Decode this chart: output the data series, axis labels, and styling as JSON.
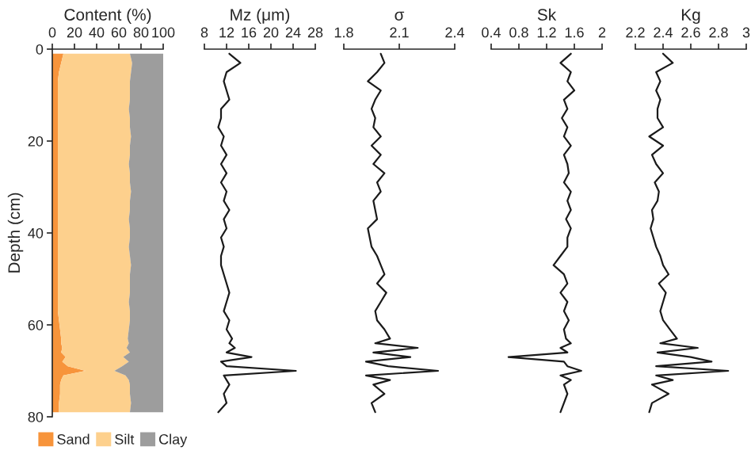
{
  "chart_data": [
    {
      "type": "area",
      "orientation": "horizontal",
      "stacked": true,
      "xlabel": "Content (%)",
      "ylabel": "Depth (cm)",
      "x": [
        1,
        3,
        5,
        7,
        9,
        11,
        13,
        15,
        17,
        19,
        21,
        23,
        25,
        27,
        29,
        31,
        33,
        35,
        37,
        39,
        41,
        43,
        45,
        47,
        49,
        51,
        53,
        55,
        57,
        59,
        61,
        63,
        64,
        65,
        66,
        67,
        68,
        69,
        70,
        71,
        72,
        73,
        75,
        77,
        79
      ],
      "series": [
        {
          "name": "Sand",
          "color": "#f7943b",
          "values": [
            10,
            8,
            6,
            5,
            5,
            5,
            5,
            5,
            5,
            5,
            5,
            5,
            5,
            5,
            5,
            5,
            5,
            5,
            5,
            5,
            5,
            5,
            5,
            5,
            5,
            5,
            5,
            5,
            5,
            6,
            7,
            8,
            8,
            9,
            8,
            12,
            9,
            14,
            30,
            10,
            8,
            7,
            7,
            6,
            6
          ]
        },
        {
          "name": "Silt",
          "color": "#fdd08d",
          "values": [
            60,
            64,
            65,
            65,
            65,
            65,
            64,
            65,
            65,
            66,
            65,
            65,
            64,
            65,
            65,
            66,
            65,
            65,
            64,
            65,
            65,
            64,
            65,
            66,
            65,
            65,
            65,
            64,
            65,
            64,
            62,
            60,
            61,
            58,
            62,
            52,
            60,
            49,
            26,
            56,
            61,
            63,
            63,
            65,
            64
          ]
        },
        {
          "name": "Clay",
          "color": "#9d9d9d",
          "values": [
            30,
            28,
            29,
            30,
            30,
            30,
            31,
            30,
            30,
            29,
            30,
            30,
            31,
            30,
            30,
            29,
            30,
            30,
            31,
            30,
            30,
            31,
            30,
            29,
            30,
            30,
            30,
            31,
            30,
            30,
            31,
            32,
            31,
            33,
            30,
            36,
            31,
            37,
            44,
            34,
            31,
            30,
            30,
            29,
            30
          ]
        }
      ],
      "xlim": [
        0,
        100
      ],
      "xticks": [
        0,
        20,
        40,
        60,
        80,
        100
      ],
      "ylim": [
        80,
        0
      ],
      "yticks": [
        0,
        20,
        40,
        60,
        80
      ],
      "legend": "bottom"
    },
    {
      "type": "line",
      "orientation": "horizontal",
      "xlabel": "Mz (μm)",
      "x": [
        1,
        3,
        5,
        7,
        9,
        11,
        13,
        15,
        17,
        19,
        21,
        23,
        25,
        27,
        29,
        31,
        33,
        35,
        37,
        39,
        41,
        43,
        45,
        47,
        49,
        51,
        53,
        55,
        57,
        59,
        61,
        63,
        64,
        65,
        66,
        67,
        68,
        69,
        70,
        71,
        72,
        73,
        75,
        77,
        79
      ],
      "series": [
        {
          "color": "#1a1a1a",
          "values": [
            12.5,
            14.5,
            12,
            11.5,
            12,
            12.5,
            11,
            11,
            10.5,
            11.5,
            11,
            12,
            11,
            12,
            11,
            12,
            11.5,
            12.5,
            11.5,
            12,
            11,
            11.5,
            11,
            11,
            11.5,
            12,
            12.5,
            12,
            11.5,
            12.5,
            12,
            13,
            12.5,
            13.5,
            12,
            16.5,
            11,
            12,
            24.5,
            11.5,
            12,
            12.5,
            11.5,
            12,
            10.5
          ]
        }
      ],
      "xlim": [
        8,
        28
      ],
      "xticks": [
        8,
        12,
        16,
        20,
        24,
        28
      ],
      "ylim": [
        80,
        0
      ],
      "tick_labels": "x"
    },
    {
      "type": "line",
      "orientation": "horizontal",
      "xlabel": "σ",
      "x": [
        1,
        3,
        5,
        7,
        9,
        11,
        13,
        15,
        17,
        19,
        21,
        23,
        25,
        27,
        29,
        31,
        33,
        35,
        37,
        39,
        41,
        43,
        45,
        47,
        49,
        51,
        53,
        55,
        57,
        59,
        61,
        63,
        64,
        65,
        66,
        67,
        68,
        69,
        70,
        71,
        72,
        73,
        75,
        77,
        79
      ],
      "series": [
        {
          "color": "#1a1a1a",
          "values": [
            2.0,
            2.02,
            1.98,
            1.93,
            2.0,
            1.97,
            1.95,
            1.97,
            1.96,
            2.0,
            1.95,
            2.0,
            1.96,
            2.02,
            1.98,
            2.0,
            1.96,
            1.97,
            1.98,
            1.93,
            1.94,
            1.95,
            1.98,
            2.0,
            2.02,
            1.98,
            2.03,
            2.0,
            1.97,
            1.98,
            2.02,
            2.05,
            1.97,
            2.2,
            1.96,
            2.16,
            1.92,
            2.04,
            2.31,
            1.92,
            2.05,
            1.96,
            2.02,
            1.95,
            1.97
          ]
        }
      ],
      "xlim": [
        1.8,
        2.4
      ],
      "xticks": [
        1.8,
        2.1,
        2.4
      ],
      "ylim": [
        80,
        0
      ],
      "tick_labels": "x"
    },
    {
      "type": "line",
      "orientation": "horizontal",
      "xlabel": "Sk",
      "x": [
        1,
        3,
        5,
        7,
        9,
        11,
        13,
        15,
        17,
        19,
        21,
        23,
        25,
        27,
        29,
        31,
        33,
        35,
        37,
        39,
        41,
        43,
        45,
        47,
        49,
        51,
        53,
        55,
        57,
        59,
        61,
        63,
        64,
        65,
        66,
        67,
        68,
        69,
        70,
        71,
        72,
        73,
        75,
        77,
        79
      ],
      "series": [
        {
          "color": "#1a1a1a",
          "values": [
            1.55,
            1.4,
            1.55,
            1.5,
            1.6,
            1.45,
            1.5,
            1.42,
            1.5,
            1.45,
            1.55,
            1.45,
            1.5,
            1.52,
            1.45,
            1.55,
            1.5,
            1.55,
            1.48,
            1.55,
            1.5,
            1.5,
            1.4,
            1.3,
            1.45,
            1.5,
            1.4,
            1.5,
            1.45,
            1.52,
            1.45,
            1.48,
            1.55,
            1.4,
            1.5,
            0.65,
            1.45,
            1.5,
            1.7,
            1.4,
            1.55,
            1.45,
            1.5,
            1.45,
            1.4
          ]
        }
      ],
      "xlim": [
        0.4,
        2
      ],
      "xticks": [
        0.4,
        0.8,
        1.2,
        1.6,
        2
      ],
      "ylim": [
        80,
        0
      ],
      "tick_labels": "x"
    },
    {
      "type": "line",
      "orientation": "horizontal",
      "xlabel": "Kg",
      "x": [
        1,
        3,
        5,
        7,
        9,
        11,
        13,
        15,
        17,
        19,
        21,
        23,
        25,
        27,
        29,
        31,
        33,
        35,
        37,
        39,
        41,
        43,
        45,
        47,
        49,
        51,
        53,
        55,
        57,
        59,
        61,
        63,
        64,
        65,
        66,
        67,
        68,
        69,
        70,
        71,
        72,
        73,
        75,
        77,
        79
      ],
      "series": [
        {
          "color": "#1a1a1a",
          "values": [
            2.4,
            2.47,
            2.35,
            2.38,
            2.35,
            2.38,
            2.36,
            2.36,
            2.4,
            2.3,
            2.4,
            2.32,
            2.35,
            2.4,
            2.34,
            2.37,
            2.36,
            2.32,
            2.33,
            2.31,
            2.33,
            2.35,
            2.38,
            2.4,
            2.44,
            2.37,
            2.42,
            2.4,
            2.38,
            2.4,
            2.45,
            2.5,
            2.38,
            2.65,
            2.36,
            2.6,
            2.75,
            2.35,
            2.87,
            2.35,
            2.47,
            2.32,
            2.44,
            2.32,
            2.3
          ]
        }
      ],
      "xlim": [
        2.2,
        3
      ],
      "xticks": [
        2.2,
        2.4,
        2.6,
        2.8,
        3
      ],
      "ylim": [
        80,
        0
      ],
      "tick_labels": "x"
    }
  ]
}
